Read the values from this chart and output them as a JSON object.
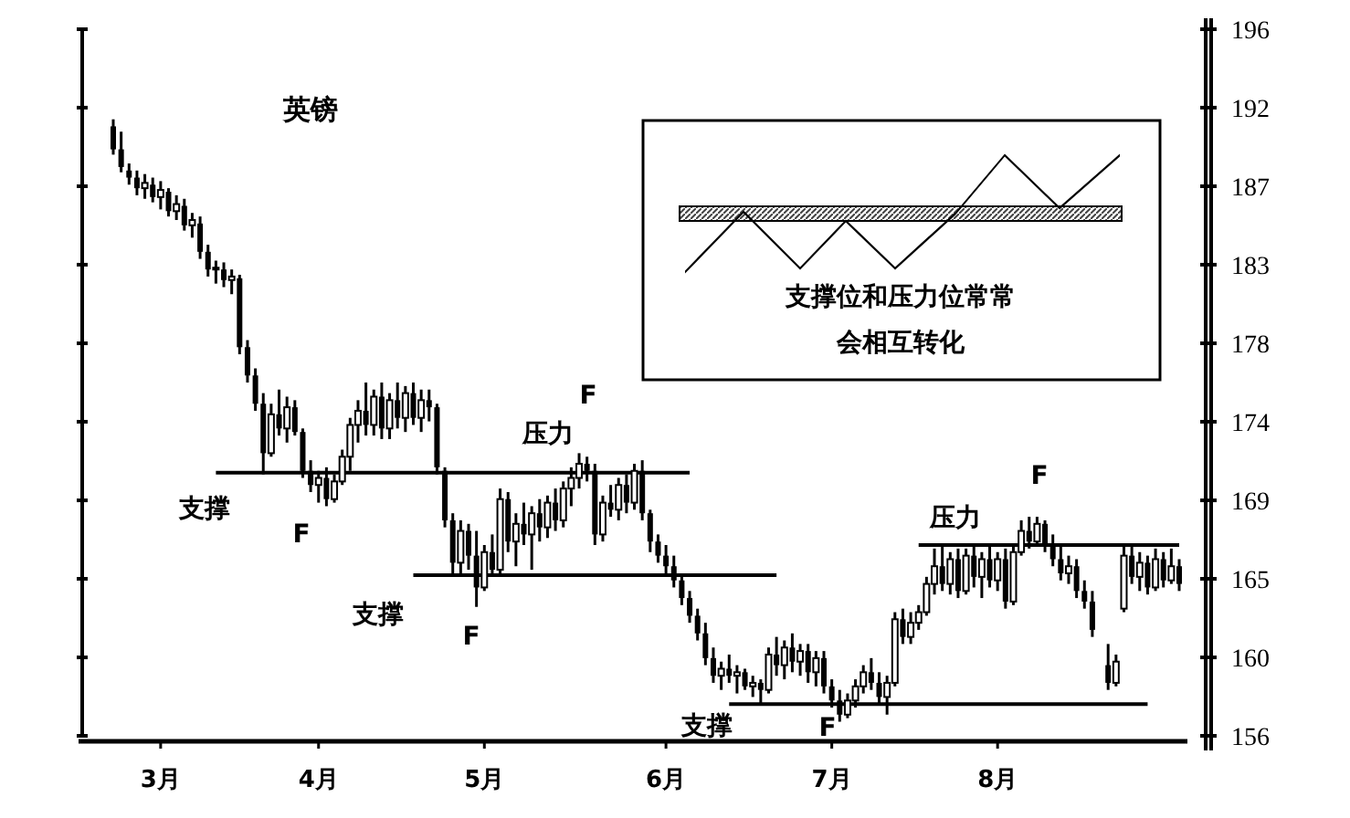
{
  "chart_data": {
    "type": "candlestick",
    "title": "英镑",
    "categories": [
      null,
      null,
      null,
      null,
      null,
      null,
      "3月",
      null,
      null,
      null,
      null,
      null,
      null,
      null,
      null,
      null,
      null,
      null,
      null,
      null,
      null,
      null,
      null,
      null,
      null,
      null,
      "4月",
      null,
      null,
      null,
      null,
      null,
      null,
      null,
      null,
      null,
      null,
      null,
      null,
      null,
      null,
      null,
      null,
      null,
      null,
      null,
      null,
      "5月",
      null,
      null,
      null,
      null,
      null,
      null,
      null,
      null,
      null,
      null,
      null,
      null,
      null,
      null,
      null,
      null,
      null,
      null,
      null,
      null,
      null,
      null,
      "6月",
      null,
      null,
      null,
      null,
      null,
      null,
      null,
      null,
      null,
      null,
      null,
      null,
      null,
      null,
      null,
      null,
      null,
      null,
      null,
      null,
      "7月",
      null,
      null,
      null,
      null,
      null,
      null,
      null,
      null,
      null,
      null,
      null,
      null,
      null,
      null,
      null,
      null,
      null,
      null,
      null,
      null,
      "8月",
      null,
      null,
      null,
      null,
      null,
      null,
      null,
      null,
      null,
      null,
      null,
      null,
      null,
      null,
      null,
      null,
      null,
      null,
      null,
      null,
      null,
      null,
      null
    ],
    "ylim": [
      156,
      196
    ],
    "yticks": [
      {
        "value": 156,
        "label": "156"
      },
      {
        "value": 160.44,
        "label": "160"
      },
      {
        "value": 164.89,
        "label": "165"
      },
      {
        "value": 169.33,
        "label": "169"
      },
      {
        "value": 173.78,
        "label": "174"
      },
      {
        "value": 178.22,
        "label": "178"
      },
      {
        "value": 182.67,
        "label": "183"
      },
      {
        "value": 187.11,
        "label": "187"
      },
      {
        "value": 191.56,
        "label": "192"
      },
      {
        "value": 196,
        "label": "196"
      }
    ],
    "annotations": [
      "支撑位和压力位常常会相互转化",
      "支撑",
      "F",
      "压力",
      "F",
      "支撑",
      "F",
      "支撑",
      "F",
      "压力",
      "F"
    ],
    "series": [
      {
        "color": "#000000",
        "ohlc": [
          [
            190.5,
            190.9,
            188.9,
            189.2
          ],
          [
            189.2,
            190.2,
            187.9,
            188.2
          ],
          [
            188.0,
            188.4,
            187.2,
            187.6
          ],
          [
            187.6,
            188.0,
            186.6,
            187.0
          ],
          [
            187.0,
            187.8,
            186.4,
            187.3
          ],
          [
            187.2,
            187.6,
            186.2,
            186.5
          ],
          [
            186.5,
            187.4,
            185.8,
            186.9
          ],
          [
            186.8,
            187.0,
            185.4,
            185.7
          ],
          [
            185.7,
            186.6,
            185.2,
            186.1
          ],
          [
            186.0,
            186.4,
            184.6,
            184.9
          ],
          [
            184.9,
            185.6,
            184.2,
            185.2
          ],
          [
            185.0,
            185.4,
            183.0,
            183.4
          ],
          [
            183.4,
            183.8,
            182.0,
            182.4
          ],
          [
            182.4,
            182.9,
            181.6,
            182.5
          ],
          [
            182.4,
            182.8,
            181.4,
            181.8
          ],
          [
            181.8,
            182.4,
            181.0,
            182.0
          ],
          [
            181.9,
            182.1,
            177.6,
            178.0
          ],
          [
            178.0,
            178.4,
            176.0,
            176.4
          ],
          [
            176.4,
            176.8,
            174.4,
            174.8
          ],
          [
            174.8,
            175.4,
            170.8,
            172.0
          ],
          [
            172.0,
            174.8,
            171.8,
            174.2
          ],
          [
            174.2,
            175.6,
            173.0,
            173.4
          ],
          [
            173.4,
            175.2,
            172.6,
            174.6
          ],
          [
            174.6,
            175.0,
            173.0,
            173.2
          ],
          [
            173.2,
            173.4,
            170.6,
            171.0
          ],
          [
            171.0,
            171.6,
            169.8,
            170.2
          ],
          [
            170.2,
            171.0,
            169.2,
            170.6
          ],
          [
            170.6,
            171.2,
            169.0,
            169.4
          ],
          [
            169.4,
            170.8,
            169.2,
            170.4
          ],
          [
            170.4,
            172.2,
            170.2,
            171.8
          ],
          [
            171.8,
            174.0,
            171.0,
            173.6
          ],
          [
            173.6,
            175.0,
            172.6,
            174.4
          ],
          [
            174.4,
            176.0,
            173.0,
            173.6
          ],
          [
            173.6,
            175.6,
            173.0,
            175.2
          ],
          [
            175.2,
            176.0,
            172.8,
            173.4
          ],
          [
            173.4,
            175.4,
            172.8,
            175.0
          ],
          [
            175.0,
            176.0,
            173.4,
            174.0
          ],
          [
            174.0,
            175.8,
            173.2,
            175.4
          ],
          [
            175.4,
            176.0,
            173.6,
            174.0
          ],
          [
            174.0,
            175.6,
            173.2,
            175.0
          ],
          [
            175.0,
            175.6,
            173.8,
            174.6
          ],
          [
            174.6,
            174.8,
            170.8,
            171.2
          ],
          [
            171.0,
            171.2,
            167.8,
            168.2
          ],
          [
            168.2,
            168.6,
            165.2,
            165.8
          ],
          [
            165.8,
            168.2,
            165.2,
            167.6
          ],
          [
            167.6,
            168.0,
            165.4,
            166.2
          ],
          [
            166.2,
            167.6,
            163.3,
            164.4
          ],
          [
            164.4,
            166.8,
            164.2,
            166.4
          ],
          [
            166.4,
            167.4,
            165.0,
            165.4
          ],
          [
            165.4,
            170.0,
            165.2,
            169.4
          ],
          [
            169.4,
            169.8,
            166.4,
            167.0
          ],
          [
            167.0,
            168.6,
            165.6,
            168.0
          ],
          [
            168.0,
            169.2,
            166.8,
            167.4
          ],
          [
            167.4,
            169.0,
            165.4,
            168.6
          ],
          [
            168.6,
            169.4,
            167.0,
            167.8
          ],
          [
            167.8,
            169.6,
            167.2,
            169.2
          ],
          [
            169.2,
            170.0,
            167.6,
            168.2
          ],
          [
            168.2,
            170.4,
            167.8,
            170.0
          ],
          [
            170.0,
            171.2,
            169.0,
            170.6
          ],
          [
            170.6,
            172.0,
            170.0,
            171.4
          ],
          [
            171.4,
            171.8,
            170.4,
            171.0
          ],
          [
            171.0,
            171.4,
            166.8,
            167.4
          ],
          [
            167.4,
            169.6,
            167.0,
            169.2
          ],
          [
            169.2,
            170.2,
            168.4,
            168.8
          ],
          [
            168.8,
            170.6,
            168.2,
            170.2
          ],
          [
            170.2,
            170.8,
            168.6,
            169.2
          ],
          [
            169.2,
            171.4,
            168.8,
            171.0
          ],
          [
            171.0,
            171.6,
            168.2,
            168.6
          ],
          [
            168.6,
            168.8,
            166.4,
            167.0
          ],
          [
            167.0,
            167.4,
            165.8,
            166.2
          ],
          [
            166.2,
            166.8,
            165.0,
            165.6
          ],
          [
            165.6,
            166.2,
            164.4,
            164.8
          ],
          [
            164.8,
            165.2,
            163.4,
            163.8
          ],
          [
            163.8,
            164.2,
            162.4,
            162.8
          ],
          [
            162.8,
            163.2,
            161.4,
            161.8
          ],
          [
            161.8,
            162.4,
            160.0,
            160.4
          ],
          [
            160.4,
            161.0,
            159.0,
            159.4
          ],
          [
            159.4,
            160.2,
            158.6,
            159.8
          ],
          [
            159.8,
            160.6,
            159.0,
            159.4
          ],
          [
            159.4,
            160.0,
            158.4,
            159.6
          ],
          [
            159.6,
            159.8,
            158.6,
            158.8
          ],
          [
            158.8,
            159.4,
            158.2,
            159.0
          ],
          [
            159.0,
            159.2,
            157.8,
            158.6
          ],
          [
            158.6,
            161.0,
            158.4,
            160.6
          ],
          [
            160.6,
            161.6,
            159.4,
            160.0
          ],
          [
            160.0,
            161.4,
            159.2,
            161.0
          ],
          [
            161.0,
            161.8,
            159.6,
            160.2
          ],
          [
            160.2,
            161.2,
            159.4,
            160.8
          ],
          [
            160.8,
            161.2,
            159.0,
            159.6
          ],
          [
            159.6,
            160.8,
            158.8,
            160.4
          ],
          [
            160.4,
            160.8,
            158.4,
            158.8
          ],
          [
            158.8,
            159.2,
            157.6,
            158.0
          ],
          [
            158.0,
            158.6,
            156.8,
            157.2
          ],
          [
            157.2,
            158.4,
            157.0,
            158.0
          ],
          [
            158.0,
            159.2,
            157.6,
            158.8
          ],
          [
            158.8,
            160.0,
            158.4,
            159.6
          ],
          [
            159.6,
            160.4,
            158.6,
            159.0
          ],
          [
            159.0,
            159.6,
            157.8,
            158.2
          ],
          [
            158.2,
            159.4,
            157.2,
            159.0
          ],
          [
            159.0,
            163.0,
            158.8,
            162.6
          ],
          [
            162.6,
            163.2,
            161.2,
            161.6
          ],
          [
            161.6,
            163.0,
            161.2,
            162.4
          ],
          [
            162.4,
            163.4,
            162.0,
            163.0
          ],
          [
            163.0,
            165.0,
            162.8,
            164.6
          ],
          [
            164.6,
            166.6,
            164.0,
            165.6
          ],
          [
            165.6,
            166.8,
            164.2,
            164.6
          ],
          [
            164.6,
            166.4,
            164.0,
            166.0
          ],
          [
            166.0,
            166.6,
            163.8,
            164.2
          ],
          [
            164.2,
            166.6,
            164.0,
            166.2
          ],
          [
            166.2,
            166.8,
            164.4,
            165.0
          ],
          [
            165.0,
            166.4,
            163.8,
            166.0
          ],
          [
            166.0,
            166.8,
            164.4,
            164.8
          ],
          [
            164.8,
            166.4,
            164.2,
            166.0
          ],
          [
            166.0,
            166.6,
            163.2,
            163.6
          ],
          [
            163.6,
            166.8,
            163.4,
            166.4
          ],
          [
            166.4,
            168.2,
            166.2,
            167.6
          ],
          [
            167.6,
            168.4,
            166.6,
            167.0
          ],
          [
            167.0,
            168.4,
            166.8,
            168.0
          ],
          [
            168.0,
            168.2,
            166.4,
            166.8
          ],
          [
            166.8,
            167.4,
            165.6,
            166.0
          ],
          [
            166.0,
            166.8,
            164.8,
            165.2
          ],
          [
            165.2,
            166.2,
            164.6,
            165.6
          ],
          [
            165.6,
            166.0,
            163.8,
            164.2
          ],
          [
            164.2,
            164.8,
            163.2,
            163.6
          ],
          [
            163.6,
            164.2,
            161.6,
            162.0
          ],
          null,
          [
            160.0,
            161.2,
            158.6,
            159.0
          ],
          [
            159.0,
            160.6,
            158.8,
            160.2
          ],
          [
            163.2,
            166.8,
            163.0,
            166.2
          ],
          [
            166.2,
            166.8,
            164.6,
            165.0
          ],
          [
            165.0,
            166.4,
            164.2,
            165.8
          ],
          [
            165.8,
            166.2,
            164.0,
            164.4
          ],
          [
            164.4,
            166.6,
            164.2,
            166.0
          ],
          [
            166.0,
            166.4,
            164.4,
            164.8
          ],
          [
            164.8,
            166.6,
            164.6,
            165.6
          ],
          [
            165.6,
            166.0,
            164.2,
            164.6
          ]
        ]
      },
      {
        "type": "line",
        "color": "#000000",
        "values": [
          null,
          null,
          null,
          null,
          null,
          null,
          null,
          null,
          null,
          null,
          null,
          null,
          null,
          170.9,
          170.9,
          170.9,
          170.9,
          170.9,
          170.9,
          170.9,
          170.9,
          170.9,
          170.9,
          170.9,
          170.9,
          170.9,
          170.9,
          170.9,
          170.9,
          170.9,
          170.9,
          170.9,
          170.9,
          170.9,
          170.9,
          170.9,
          170.9,
          170.9,
          170.9,
          170.9,
          170.9,
          170.9,
          170.9,
          170.9,
          170.9,
          170.9,
          170.9,
          170.9,
          170.9,
          170.9,
          170.9,
          170.9,
          170.9,
          170.9,
          170.9,
          170.9,
          170.9,
          170.9,
          170.9,
          170.9,
          170.9,
          170.9,
          170.9,
          170.9,
          170.9,
          170.9,
          170.9,
          170.9,
          170.9,
          170.9,
          170.9,
          170.9,
          170.9,
          170.9,
          null,
          null,
          null,
          null,
          null,
          null,
          null,
          null,
          null,
          null,
          null,
          null,
          null,
          null,
          null,
          null,
          null,
          null,
          null,
          null,
          null,
          null,
          null,
          null,
          null,
          null,
          null,
          null,
          null,
          null,
          null,
          null,
          null,
          null,
          null,
          null,
          null,
          null,
          null,
          null,
          null,
          null,
          null,
          null,
          null,
          null,
          null,
          null,
          null,
          null,
          null,
          null,
          null,
          null,
          null,
          null,
          null,
          null,
          null,
          null,
          null,
          null
        ]
      },
      {
        "type": "line",
        "color": "#000000",
        "values": [
          null,
          null,
          null,
          null,
          null,
          null,
          null,
          null,
          null,
          null,
          null,
          null,
          null,
          null,
          null,
          null,
          null,
          null,
          null,
          null,
          null,
          null,
          null,
          null,
          null,
          null,
          null,
          null,
          null,
          null,
          null,
          null,
          null,
          null,
          null,
          null,
          null,
          null,
          165.1,
          165.1,
          165.1,
          165.1,
          165.1,
          165.1,
          165.1,
          165.1,
          165.1,
          165.1,
          165.1,
          165.1,
          165.1,
          165.1,
          165.1,
          165.1,
          165.1,
          165.1,
          165.1,
          165.1,
          165.1,
          165.1,
          165.1,
          165.1,
          165.1,
          165.1,
          165.1,
          165.1,
          165.1,
          165.1,
          165.1,
          165.1,
          165.1,
          165.1,
          165.1,
          165.1,
          165.1,
          165.1,
          165.1,
          165.1,
          165.1,
          165.1,
          165.1,
          165.1,
          165.1,
          165.1,
          165.1,
          null,
          null,
          null,
          null,
          null,
          null,
          null,
          null,
          null,
          null,
          null,
          null,
          null,
          null,
          null,
          null,
          null,
          null,
          null,
          null,
          null,
          null,
          null,
          null,
          null,
          null,
          null,
          null,
          null,
          null,
          null,
          null,
          null,
          null,
          null,
          null,
          null,
          null,
          null,
          null,
          null,
          null,
          null,
          null,
          null,
          null,
          null,
          null,
          null,
          null,
          null
        ]
      },
      {
        "type": "line",
        "color": "#000000",
        "values": [
          null,
          null,
          null,
          null,
          null,
          null,
          null,
          null,
          null,
          null,
          null,
          null,
          null,
          null,
          null,
          null,
          null,
          null,
          null,
          null,
          null,
          null,
          null,
          null,
          null,
          null,
          null,
          null,
          null,
          null,
          null,
          null,
          null,
          null,
          null,
          null,
          null,
          null,
          null,
          null,
          null,
          null,
          null,
          null,
          null,
          null,
          null,
          null,
          null,
          null,
          null,
          null,
          null,
          null,
          null,
          null,
          null,
          null,
          null,
          null,
          null,
          null,
          null,
          null,
          null,
          null,
          null,
          null,
          null,
          null,
          null,
          null,
          null,
          null,
          null,
          null,
          null,
          null,
          157.8,
          157.8,
          157.8,
          157.8,
          157.8,
          157.8,
          157.8,
          157.8,
          157.8,
          157.8,
          157.8,
          157.8,
          157.8,
          157.8,
          157.8,
          157.8,
          157.8,
          157.8,
          157.8,
          157.8,
          157.8,
          157.8,
          157.8,
          157.8,
          157.8,
          157.8,
          157.8,
          157.8,
          157.8,
          157.8,
          157.8,
          157.8,
          157.8,
          157.8,
          157.8,
          157.8,
          157.8,
          157.8,
          157.8,
          157.8,
          157.8,
          157.8,
          157.8,
          157.8,
          157.8,
          157.8,
          157.8,
          157.8,
          157.8,
          157.8,
          157.8,
          157.8,
          157.8,
          157.8,
          null,
          null,
          null,
          null
        ]
      },
      {
        "type": "line",
        "color": "#000000",
        "values": [
          null,
          null,
          null,
          null,
          null,
          null,
          null,
          null,
          null,
          null,
          null,
          null,
          null,
          null,
          null,
          null,
          null,
          null,
          null,
          null,
          null,
          null,
          null,
          null,
          null,
          null,
          null,
          null,
          null,
          null,
          null,
          null,
          null,
          null,
          null,
          null,
          null,
          null,
          null,
          null,
          null,
          null,
          null,
          null,
          null,
          null,
          null,
          null,
          null,
          null,
          null,
          null,
          null,
          null,
          null,
          null,
          null,
          null,
          null,
          null,
          null,
          null,
          null,
          null,
          null,
          null,
          null,
          null,
          null,
          null,
          null,
          null,
          null,
          null,
          null,
          null,
          null,
          null,
          null,
          null,
          null,
          null,
          null,
          null,
          null,
          null,
          null,
          null,
          null,
          null,
          null,
          null,
          null,
          null,
          null,
          null,
          null,
          null,
          null,
          null,
          null,
          null,
          166.8,
          166.8,
          166.8,
          166.8,
          166.8,
          166.8,
          166.8,
          166.8,
          166.8,
          166.8,
          166.8,
          166.8,
          166.8,
          166.8,
          166.8,
          166.8,
          166.8,
          166.8,
          166.8,
          166.8,
          166.8,
          166.8,
          166.8,
          166.8,
          166.8,
          166.8,
          166.8,
          166.8,
          166.8,
          166.8,
          166.8,
          166.8,
          166.8,
          166.8
        ]
      }
    ]
  }
}
